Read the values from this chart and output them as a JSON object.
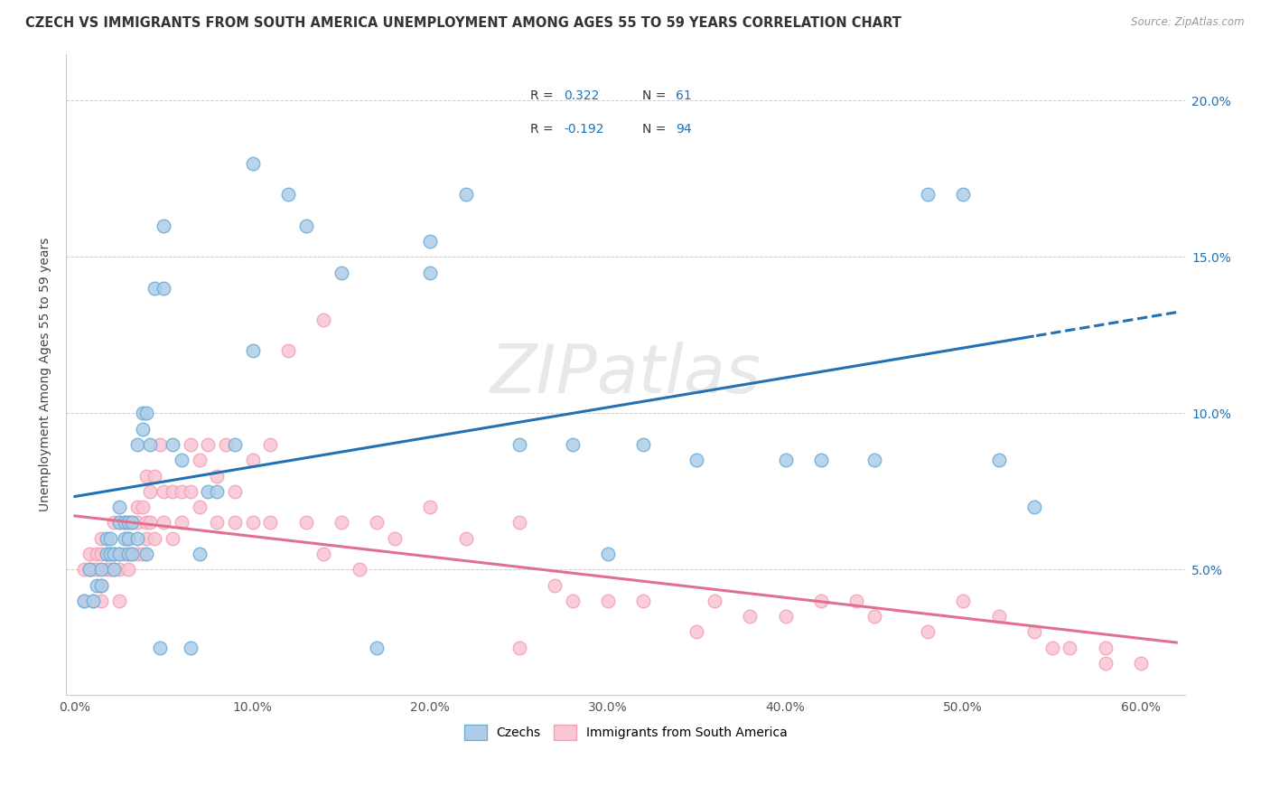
{
  "title": "CZECH VS IMMIGRANTS FROM SOUTH AMERICA UNEMPLOYMENT AMONG AGES 55 TO 59 YEARS CORRELATION CHART",
  "source": "Source: ZipAtlas.com",
  "ylabel": "Unemployment Among Ages 55 to 59 years",
  "xlabel_ticks": [
    "0.0%",
    "10.0%",
    "20.0%",
    "30.0%",
    "40.0%",
    "50.0%",
    "60.0%"
  ],
  "xlabel_vals": [
    0.0,
    0.1,
    0.2,
    0.3,
    0.4,
    0.5,
    0.6
  ],
  "ylabel_ticks": [
    "5.0%",
    "10.0%",
    "15.0%",
    "20.0%"
  ],
  "ylabel_vals": [
    0.05,
    0.1,
    0.15,
    0.2
  ],
  "xlim": [
    -0.005,
    0.625
  ],
  "ylim": [
    0.01,
    0.215
  ],
  "czech_color": "#6baed6",
  "czech_color_face": "#aecde8",
  "sa_color": "#f4a0b5",
  "sa_color_face": "#f9c6d4",
  "czech_R": 0.322,
  "czech_N": 61,
  "sa_R": -0.192,
  "sa_N": 94,
  "legend_label_czech": "Czechs",
  "legend_label_sa": "Immigrants from South America",
  "watermark": "ZIPatlas",
  "czech_line_color": "#2171b5",
  "sa_line_color": "#e07090",
  "czech_scatter_x": [
    0.005,
    0.008,
    0.01,
    0.012,
    0.015,
    0.015,
    0.018,
    0.018,
    0.02,
    0.02,
    0.022,
    0.022,
    0.025,
    0.025,
    0.025,
    0.028,
    0.028,
    0.03,
    0.03,
    0.03,
    0.032,
    0.032,
    0.035,
    0.035,
    0.038,
    0.038,
    0.04,
    0.04,
    0.042,
    0.045,
    0.048,
    0.05,
    0.05,
    0.055,
    0.06,
    0.065,
    0.07,
    0.075,
    0.08,
    0.09,
    0.1,
    0.1,
    0.12,
    0.13,
    0.15,
    0.17,
    0.2,
    0.2,
    0.22,
    0.25,
    0.28,
    0.3,
    0.32,
    0.35,
    0.4,
    0.42,
    0.45,
    0.48,
    0.5,
    0.52,
    0.54
  ],
  "czech_scatter_y": [
    0.04,
    0.05,
    0.04,
    0.045,
    0.05,
    0.045,
    0.06,
    0.055,
    0.055,
    0.06,
    0.05,
    0.055,
    0.055,
    0.065,
    0.07,
    0.06,
    0.065,
    0.055,
    0.06,
    0.065,
    0.055,
    0.065,
    0.06,
    0.09,
    0.095,
    0.1,
    0.055,
    0.1,
    0.09,
    0.14,
    0.025,
    0.16,
    0.14,
    0.09,
    0.085,
    0.025,
    0.055,
    0.075,
    0.075,
    0.09,
    0.12,
    0.18,
    0.17,
    0.16,
    0.145,
    0.025,
    0.145,
    0.155,
    0.17,
    0.09,
    0.09,
    0.055,
    0.09,
    0.085,
    0.085,
    0.085,
    0.085,
    0.17,
    0.17,
    0.085,
    0.07
  ],
  "sa_scatter_x": [
    0.005,
    0.005,
    0.008,
    0.008,
    0.01,
    0.01,
    0.012,
    0.012,
    0.015,
    0.015,
    0.015,
    0.015,
    0.018,
    0.018,
    0.02,
    0.02,
    0.022,
    0.022,
    0.022,
    0.025,
    0.025,
    0.025,
    0.025,
    0.028,
    0.028,
    0.03,
    0.03,
    0.032,
    0.032,
    0.035,
    0.035,
    0.035,
    0.038,
    0.038,
    0.04,
    0.04,
    0.04,
    0.042,
    0.042,
    0.045,
    0.045,
    0.048,
    0.05,
    0.05,
    0.055,
    0.055,
    0.06,
    0.06,
    0.065,
    0.065,
    0.07,
    0.07,
    0.075,
    0.08,
    0.08,
    0.085,
    0.09,
    0.09,
    0.1,
    0.1,
    0.11,
    0.11,
    0.12,
    0.13,
    0.14,
    0.14,
    0.15,
    0.16,
    0.17,
    0.18,
    0.2,
    0.22,
    0.25,
    0.25,
    0.27,
    0.28,
    0.3,
    0.32,
    0.35,
    0.36,
    0.38,
    0.4,
    0.42,
    0.44,
    0.45,
    0.48,
    0.5,
    0.52,
    0.54,
    0.55,
    0.56,
    0.58,
    0.58,
    0.6
  ],
  "sa_scatter_y": [
    0.04,
    0.05,
    0.05,
    0.055,
    0.04,
    0.05,
    0.05,
    0.055,
    0.04,
    0.045,
    0.055,
    0.06,
    0.05,
    0.055,
    0.05,
    0.055,
    0.05,
    0.055,
    0.065,
    0.04,
    0.05,
    0.055,
    0.065,
    0.055,
    0.065,
    0.05,
    0.06,
    0.055,
    0.065,
    0.055,
    0.065,
    0.07,
    0.055,
    0.07,
    0.06,
    0.065,
    0.08,
    0.065,
    0.075,
    0.06,
    0.08,
    0.09,
    0.065,
    0.075,
    0.06,
    0.075,
    0.075,
    0.065,
    0.075,
    0.09,
    0.07,
    0.085,
    0.09,
    0.065,
    0.08,
    0.09,
    0.065,
    0.075,
    0.065,
    0.085,
    0.065,
    0.09,
    0.12,
    0.065,
    0.055,
    0.13,
    0.065,
    0.05,
    0.065,
    0.06,
    0.07,
    0.06,
    0.065,
    0.025,
    0.045,
    0.04,
    0.04,
    0.04,
    0.03,
    0.04,
    0.035,
    0.035,
    0.04,
    0.04,
    0.035,
    0.03,
    0.04,
    0.035,
    0.03,
    0.025,
    0.025,
    0.025,
    0.02,
    0.02
  ]
}
